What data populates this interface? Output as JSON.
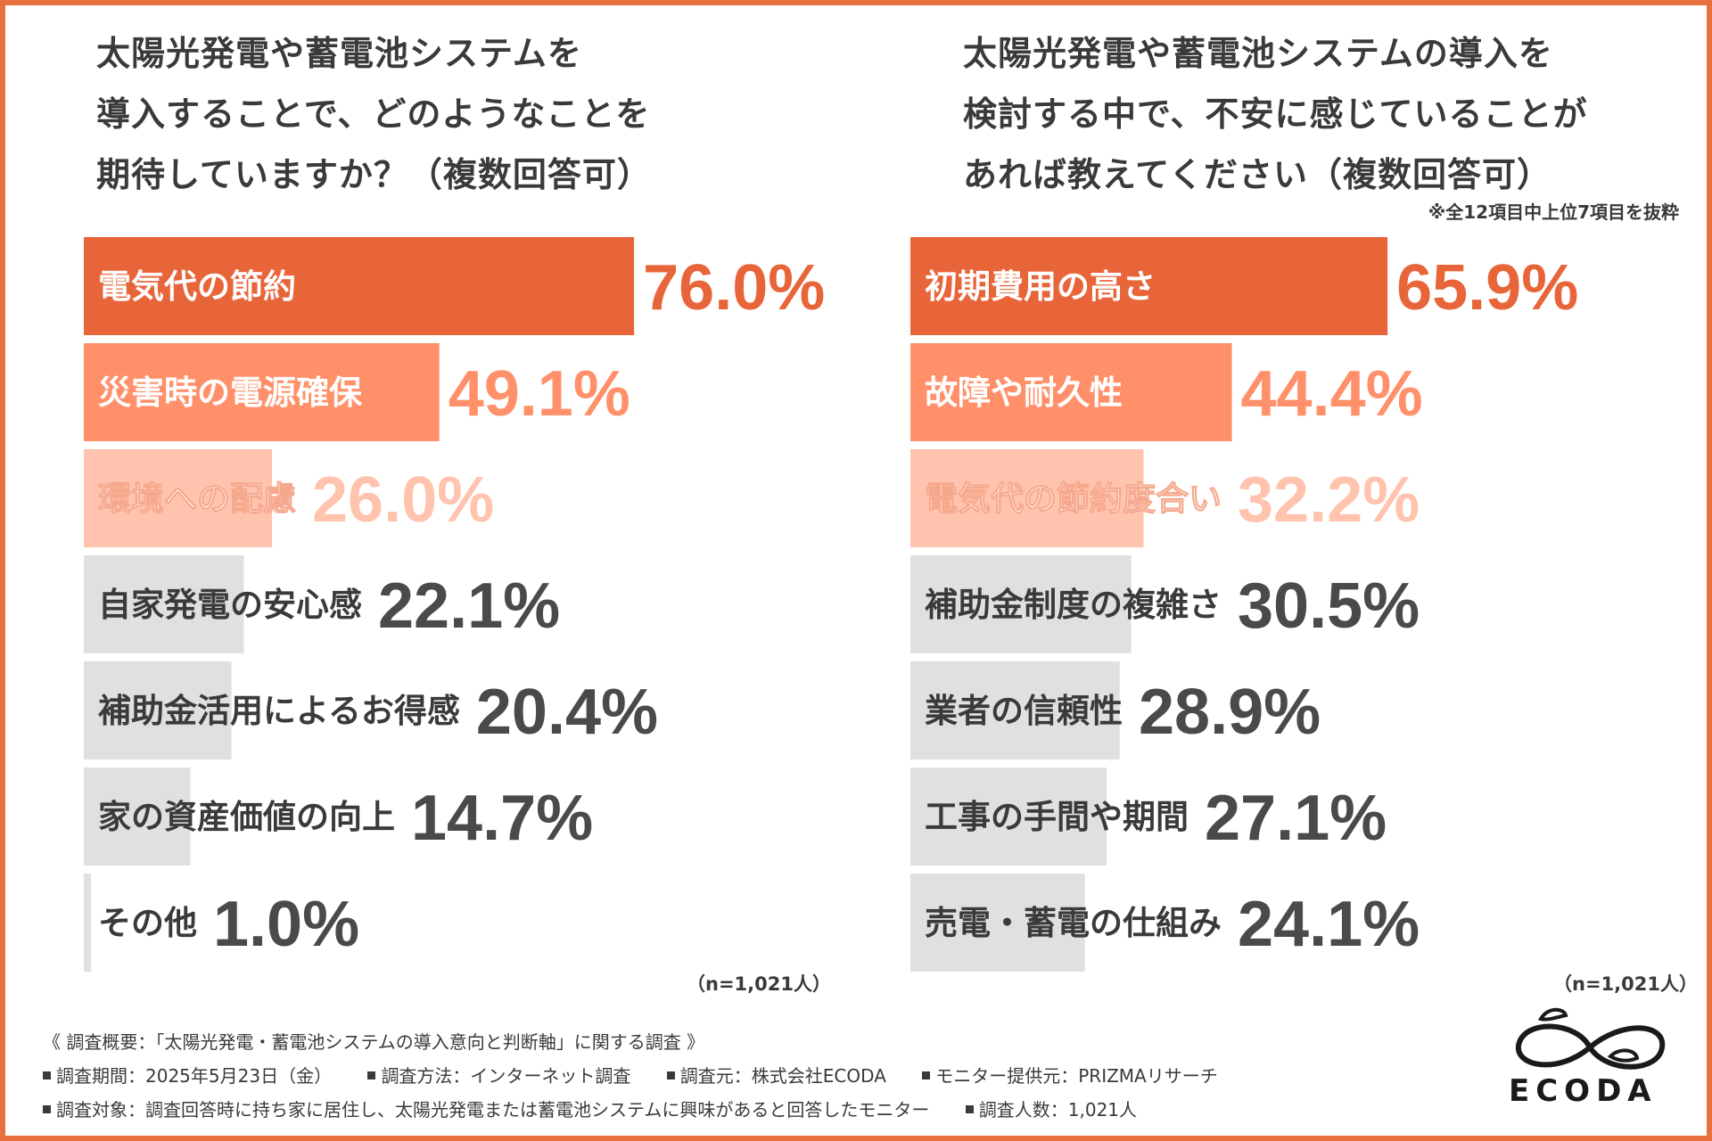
{
  "left_title": [
    "太陽光発電や蓄電池システムを",
    "導入することで、どのようなことを",
    "期待していますか？（複数回答可）"
  ],
  "right_title": [
    "太陽光発電や蓄電池システムの導入を",
    "検討する中で、不安に感じていることが",
    "あれば教えてください（複数回答可）"
  ],
  "right_note": "※全12項目中上位7項目を抜粋",
  "left_n": "（n=1,021人）",
  "right_n": "（n=1,021人）",
  "colors": {
    "frame": "#e8703c",
    "rank1": "#e8653a",
    "rank2": "#ff906a",
    "rank3": "#ffc3ae",
    "other": "#e0e0e0",
    "text_dark": "#3a3a3a",
    "pct_gray": "#4a4a4a"
  },
  "chart_data": [
    {
      "type": "bar",
      "orientation": "horizontal",
      "title": "太陽光発電や蓄電池システムを導入することで、どのようなことを期待していますか？（複数回答可）",
      "categories": [
        "電気代の節約",
        "災害時の電源確保",
        "環境への配慮",
        "自家発電の安心感",
        "補助金活用によるお得感",
        "家の資産価値の向上",
        "その他"
      ],
      "values": [
        76.0,
        49.1,
        26.0,
        22.1,
        20.4,
        14.7,
        1.0
      ],
      "labels": [
        "76.0%",
        "49.1%",
        "26.0%",
        "22.1%",
        "20.4%",
        "14.7%",
        "1.0%"
      ],
      "unit": "%",
      "xlim": [
        0,
        100
      ]
    },
    {
      "type": "bar",
      "orientation": "horizontal",
      "title": "太陽光発電や蓄電池システムの導入を検討する中で、不安に感じていることがあれば教えてください（複数回答可）",
      "categories": [
        "初期費用の高さ",
        "故障や耐久性",
        "電気代の節約度合い",
        "補助金制度の複雑さ",
        "業者の信頼性",
        "工事の手間や期間",
        "売電・蓄電の仕組み"
      ],
      "values": [
        65.9,
        44.4,
        32.2,
        30.5,
        28.9,
        27.1,
        24.1
      ],
      "labels": [
        "65.9%",
        "44.4%",
        "32.2%",
        "30.5%",
        "28.9%",
        "27.1%",
        "24.1%"
      ],
      "unit": "%",
      "xlim": [
        0,
        100
      ]
    }
  ],
  "footer": {
    "heading": "《 調査概要：「太陽光発電・蓄電池システムの導入意向と判断軸」に関する調査 》",
    "line1": [
      "調査期間：2025年5月23日（金）",
      "調査方法：インターネット調査",
      "調査元：株式会社ECODA",
      "モニター提供元：PRIZMAリサーチ"
    ],
    "line2": [
      "調査対象：調査回答時に持ち家に居住し、太陽光発電または蓄電池システムに興味があると回答したモニター",
      "調査人数：1,021人"
    ]
  },
  "logo": {
    "text": "ECODA",
    "icon": "infinity-leaf-icon"
  }
}
